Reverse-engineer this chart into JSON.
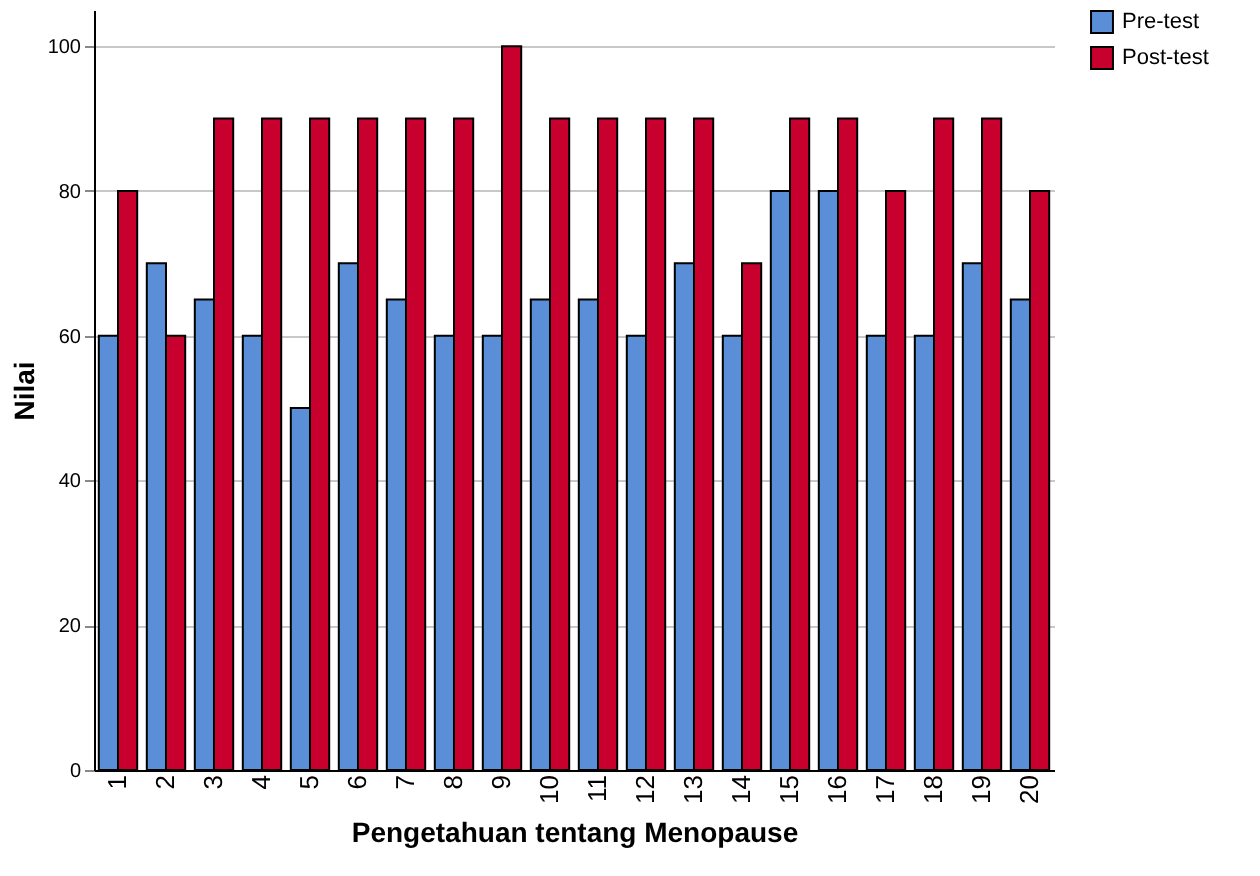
{
  "chart_data": {
    "type": "bar",
    "xlabel": "Pengetahuan tentang Menopause",
    "ylabel": "Nilai",
    "categories": [
      "1",
      "2",
      "3",
      "4",
      "5",
      "6",
      "7",
      "8",
      "9",
      "10",
      "11",
      "12",
      "13",
      "14",
      "15",
      "16",
      "17",
      "18",
      "19",
      "20"
    ],
    "series": [
      {
        "name": "Pre-test",
        "color": "#5a8fd8",
        "values": [
          60,
          70,
          65,
          60,
          50,
          70,
          65,
          60,
          60,
          65,
          65,
          60,
          70,
          60,
          80,
          80,
          60,
          60,
          70,
          65
        ]
      },
      {
        "name": "Post-test",
        "color": "#c8002d",
        "values": [
          80,
          60,
          90,
          90,
          90,
          90,
          90,
          90,
          100,
          90,
          90,
          90,
          90,
          70,
          90,
          90,
          80,
          90,
          90,
          80
        ]
      }
    ],
    "ylim": [
      0,
      105
    ],
    "yticks": [
      0,
      20,
      40,
      60,
      80,
      100
    ],
    "grid": "y",
    "legend": "top right"
  }
}
